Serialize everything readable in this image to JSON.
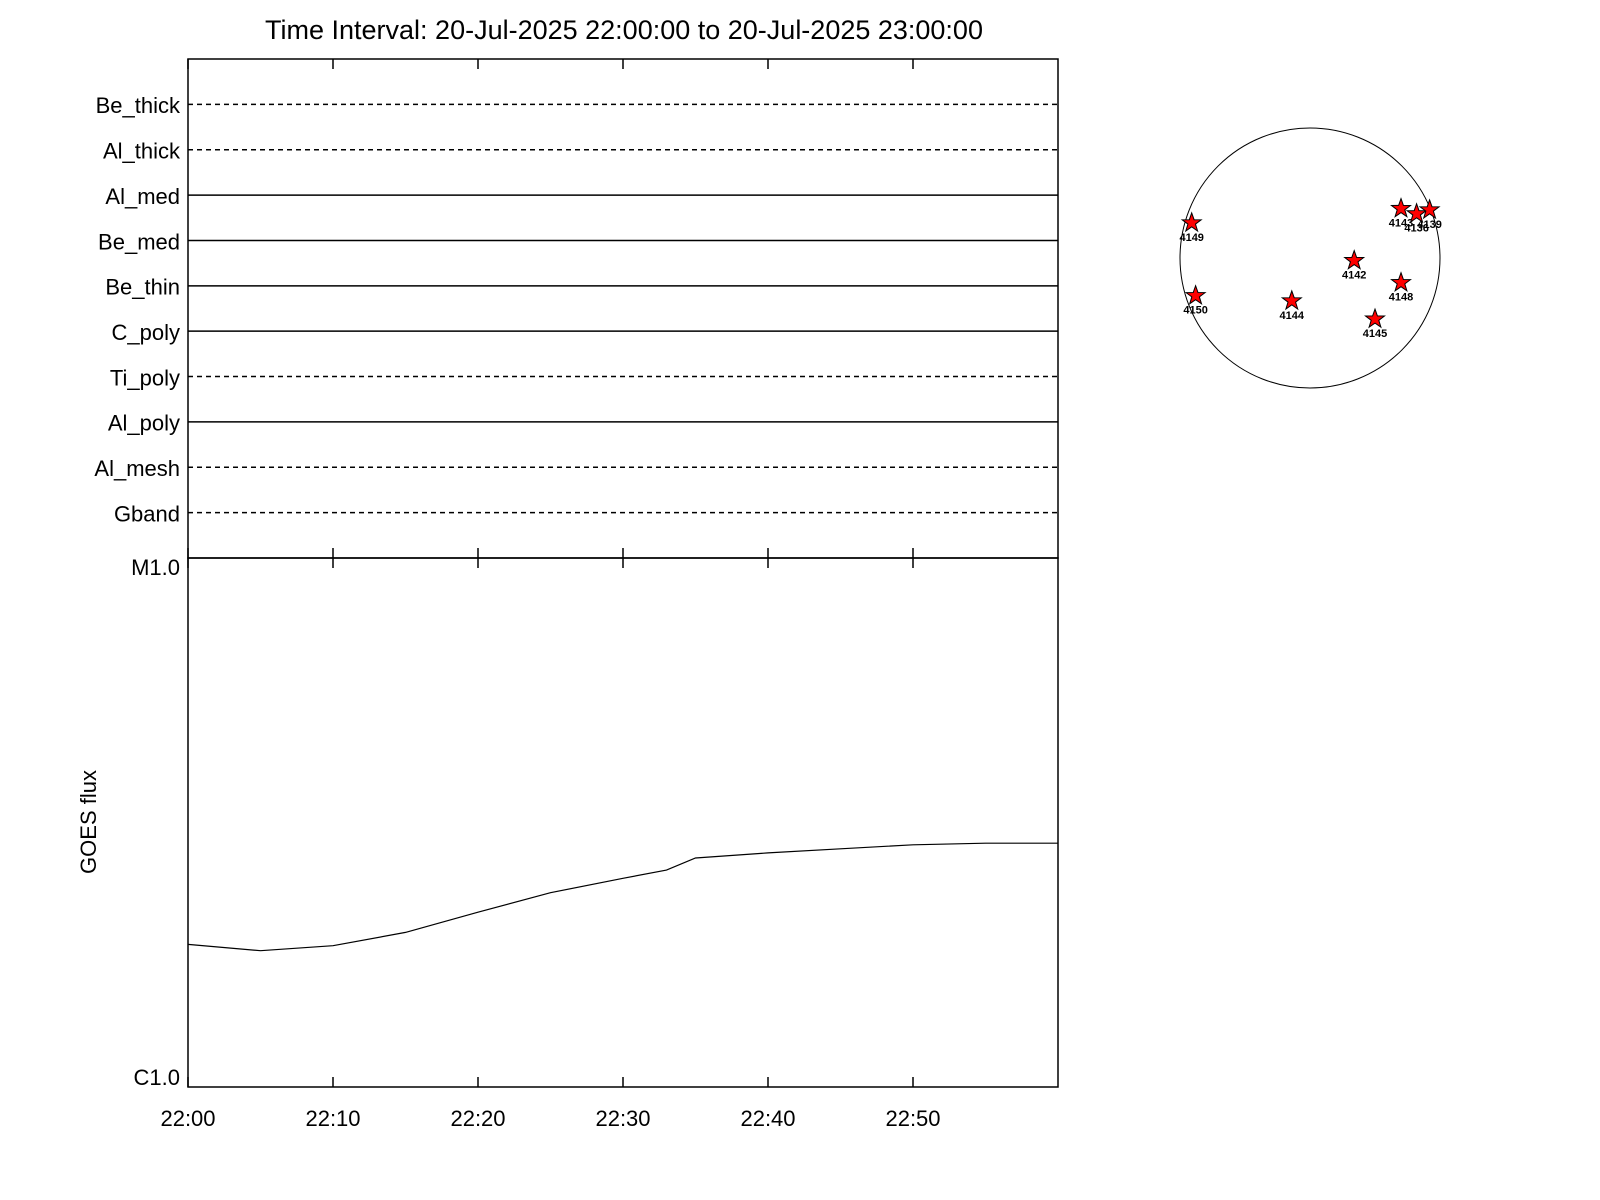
{
  "chart_data": [
    {
      "type": "filters",
      "title": "Time Interval: 20-Jul-2025 22:00:00 to 20-Jul-2025 23:00:00",
      "categories": [
        "Be_thick",
        "Al_thick",
        "Al_med",
        "Be_med",
        "Be_thin",
        "C_poly",
        "Ti_poly",
        "Al_poly",
        "Al_mesh",
        "Gband"
      ],
      "line_styles": [
        "dashed",
        "dashed",
        "solid",
        "solid",
        "solid",
        "solid",
        "dashed",
        "solid",
        "dashed",
        "dashed"
      ]
    },
    {
      "type": "line",
      "ylabel": "GOES flux",
      "log_scale": true,
      "color": "#000000",
      "x": [
        "22:00",
        "22:05",
        "22:10",
        "22:15",
        "22:20",
        "22:25",
        "22:30",
        "22:33",
        "22:35",
        "22:40",
        "22:45",
        "22:50",
        "22:55",
        "23:00"
      ],
      "values": [
        1.86e-06,
        1.81e-06,
        1.85e-06,
        1.96e-06,
        2.14e-06,
        2.33e-06,
        2.48e-06,
        2.57e-06,
        2.71e-06,
        2.77e-06,
        2.82e-06,
        2.87e-06,
        2.89e-06,
        2.89e-06
      ],
      "xlim": [
        "22:00",
        "23:00"
      ],
      "xticks": [
        "22:00",
        "22:10",
        "22:20",
        "22:30",
        "22:40",
        "22:50"
      ],
      "ylim": [
        1e-06,
        1e-05
      ],
      "yticks": [
        {
          "value": 1e-06,
          "label": "C1.0"
        },
        {
          "value": 1e-05,
          "label": "M1.0"
        }
      ]
    },
    {
      "type": "disk",
      "color": "#ff0000",
      "xlim": [
        -1,
        1
      ],
      "ylim": [
        -1,
        1
      ],
      "points": [
        {
          "name": "4149",
          "x": -0.91,
          "y": 0.27
        },
        {
          "name": "4150",
          "x": -0.88,
          "y": -0.29
        },
        {
          "name": "4144",
          "x": -0.14,
          "y": -0.33
        },
        {
          "name": "4142",
          "x": 0.34,
          "y": -0.02
        },
        {
          "name": "4148",
          "x": 0.7,
          "y": -0.19
        },
        {
          "name": "4145",
          "x": 0.5,
          "y": -0.47
        },
        {
          "name": "4143",
          "x": 0.7,
          "y": 0.38
        },
        {
          "name": "4136",
          "x": 0.82,
          "y": 0.34
        },
        {
          "name": "4139",
          "x": 0.92,
          "y": 0.37
        }
      ]
    }
  ]
}
